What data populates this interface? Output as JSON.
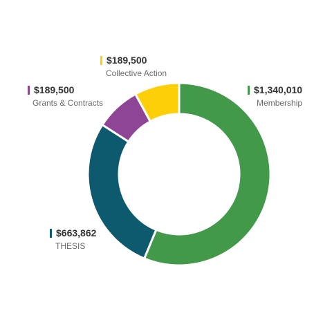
{
  "chart_data": {
    "type": "pie",
    "donut": true,
    "categories": [
      "Membership",
      "THESIS",
      "Grants & Contracts",
      "Collective Action"
    ],
    "values": [
      1340010,
      663862,
      189500,
      189500
    ],
    "value_labels": [
      "$1,340,010",
      "$663,862",
      "$189,500",
      "$189,500"
    ],
    "colors": [
      "#43994a",
      "#0d5a6e",
      "#8e4596",
      "#fccf09"
    ],
    "legend": "inline-labels",
    "title": "",
    "note": ""
  }
}
